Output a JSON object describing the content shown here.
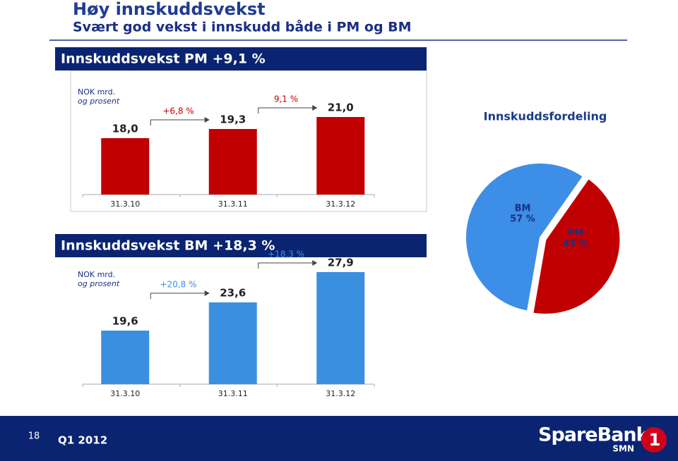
{
  "title": "Høy innskuddsvekst",
  "subtitle": "Svært god vekst i innskudd  både i PM og BM",
  "chart_data": [
    {
      "type": "bar",
      "title": "Innskuddsvekst PM +9,1 %",
      "unit_label": [
        "NOK mrd.",
        "og prosent"
      ],
      "categories": [
        "31.3.10",
        "31.3.11",
        "31.3.12"
      ],
      "values": [
        18.0,
        19.3,
        21.0
      ],
      "value_labels": [
        "18,0",
        "19,3",
        "21,0"
      ],
      "growth_labels": [
        "+6,8 %",
        "9,1 %"
      ],
      "color": "#c00000",
      "ylim": [
        10,
        22
      ]
    },
    {
      "type": "bar",
      "title": "Innskuddsvekst BM +18,3 %",
      "unit_label": [
        "NOK mrd.",
        "og prosent"
      ],
      "categories": [
        "31.3.10",
        "31.3.11",
        "31.3.12"
      ],
      "values": [
        19.6,
        23.6,
        27.9
      ],
      "value_labels": [
        "19,6",
        "23,6",
        "27,9"
      ],
      "growth_labels": [
        "+20,8 %",
        "+18,3 %"
      ],
      "color": "#3b8fe0",
      "ylim": [
        12,
        30
      ]
    },
    {
      "type": "pie",
      "title": "Innskuddsfordeling",
      "categories": [
        "BM",
        "PM"
      ],
      "values": [
        57,
        43
      ],
      "value_labels": [
        "57 %",
        "43 %"
      ],
      "colors": [
        "#3d8ee6",
        "#c00000"
      ]
    }
  ],
  "footer": {
    "page": "18",
    "period": "Q1 2012",
    "logo": "SpareBank",
    "logo_sub": "SMN"
  }
}
